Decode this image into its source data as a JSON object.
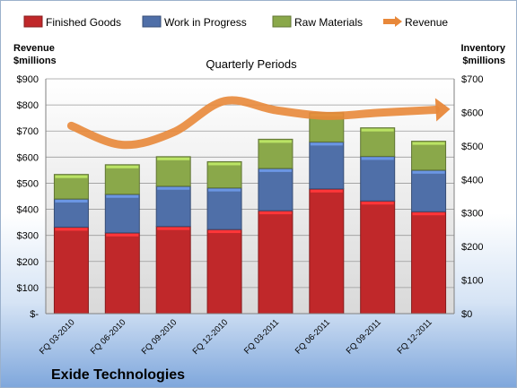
{
  "chart_data": {
    "type": "bar",
    "stacked": true,
    "title": "Quarterly Periods",
    "ylabel_left": [
      "Revenue",
      "$millions"
    ],
    "ylabel_right": [
      "Inventory",
      "$millions"
    ],
    "footer": "Exide Technologies",
    "categories": [
      "FQ 03-2010",
      "FQ 06-2010",
      "FQ 09-2010",
      "FQ 12-2010",
      "FQ 03-2011",
      "FQ 06-2011",
      "FQ 09-2011",
      "FQ 12-2011"
    ],
    "ylim_left": [
      0,
      900
    ],
    "ylim_right": [
      0,
      700
    ],
    "yticks_left": [
      "$-",
      "$100",
      "$200",
      "$300",
      "$400",
      "$500",
      "$600",
      "$700",
      "$800",
      "$900"
    ],
    "yticks_right": [
      "$0",
      "$100",
      "$200",
      "$300",
      "$400",
      "$500",
      "$600",
      "$700"
    ],
    "grid": true,
    "legend_position": "top",
    "series": [
      {
        "name": "Finished Goods",
        "axis": "right",
        "color": "#c0282a",
        "values": [
          258,
          241,
          260,
          251,
          307,
          372,
          336,
          304
        ]
      },
      {
        "name": "Work in Progress",
        "axis": "right",
        "color": "#4f6fa8",
        "values": [
          84,
          115,
          120,
          124,
          126,
          140,
          133,
          124
        ]
      },
      {
        "name": "Raw Materials",
        "axis": "right",
        "color": "#8aa84a",
        "values": [
          73,
          88,
          88,
          78,
          87,
          87,
          85,
          86
        ]
      },
      {
        "name": "Revenue",
        "axis": "left",
        "type": "line",
        "color": "#e8883a",
        "values": [
          720,
          647,
          695,
          815,
          780,
          758,
          770,
          780
        ]
      }
    ]
  }
}
